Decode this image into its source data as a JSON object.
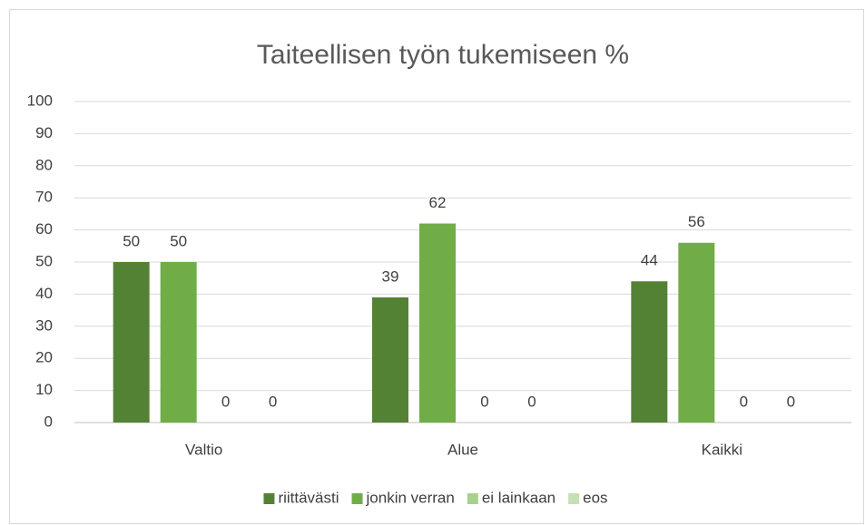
{
  "chart_data": {
    "type": "bar",
    "title": "Taiteellisen työn tukemiseen %",
    "categories": [
      "Valtio",
      "Alue",
      "Kaikki"
    ],
    "series": [
      {
        "name": "riittävästi",
        "color": "#548235",
        "values": [
          50,
          39,
          44
        ]
      },
      {
        "name": "jonkin verran",
        "color": "#70ad47",
        "values": [
          50,
          62,
          56
        ]
      },
      {
        "name": "ei lainkaan",
        "color": "#a9d18e",
        "values": [
          0,
          0,
          0
        ]
      },
      {
        "name": "eos",
        "color": "#c5e0b4",
        "values": [
          0,
          0,
          0
        ]
      }
    ],
    "ylim": [
      0,
      100
    ],
    "yticks": [
      0,
      10,
      20,
      30,
      40,
      50,
      60,
      70,
      80,
      90,
      100
    ],
    "grid": true,
    "legend": "bottom"
  }
}
